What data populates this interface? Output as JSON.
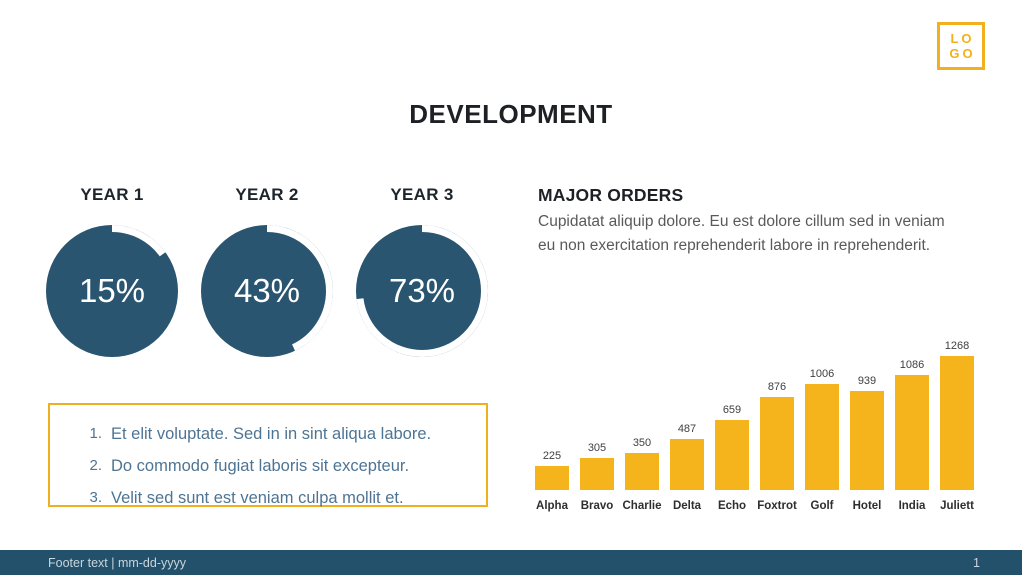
{
  "slide": {
    "title": "DEVELOPMENT",
    "footer_text": "Footer text | mm-dd-yyyy",
    "page_number": "1"
  },
  "logo": {
    "line1": "LO",
    "line2": "GO"
  },
  "progress": {
    "items": [
      {
        "label": "YEAR 1",
        "percent": 15,
        "display": "15%"
      },
      {
        "label": "YEAR 2",
        "percent": 43,
        "display": "43%"
      },
      {
        "label": "YEAR 3",
        "percent": 73,
        "display": "73%"
      }
    ]
  },
  "numbered_list": {
    "items": [
      "Et elit voluptate. Sed in in sint aliqua labore.",
      "Do commodo fugiat laboris sit excepteur.",
      "Velit sed sunt est veniam culpa mollit et."
    ]
  },
  "major_orders": {
    "heading": "MAJOR ORDERS",
    "body": "Cupidatat aliquip dolore. Eu est dolore cillum sed in veniam eu non exercitation reprehenderit labore in reprehenderit."
  },
  "chart_data": {
    "type": "bar",
    "categories": [
      "Alpha",
      "Bravo",
      "Charlie",
      "Delta",
      "Echo",
      "Foxtrot",
      "Golf",
      "Hotel",
      "India",
      "Juliett"
    ],
    "values": [
      225,
      305,
      350,
      487,
      659,
      876,
      1006,
      939,
      1086,
      1268
    ],
    "title": "",
    "xlabel": "",
    "ylabel": "",
    "ylim": [
      0,
      1268
    ],
    "grid": false,
    "legend": false,
    "data_labels": true,
    "bar_color": "#F5B41C"
  },
  "colors": {
    "accent_yellow": "#F2B01E",
    "dark_teal": "#2A5570",
    "footer_teal": "#23506A",
    "heading": "#1D2126",
    "body_gray": "#58595B",
    "list_blue": "#4E7494"
  }
}
